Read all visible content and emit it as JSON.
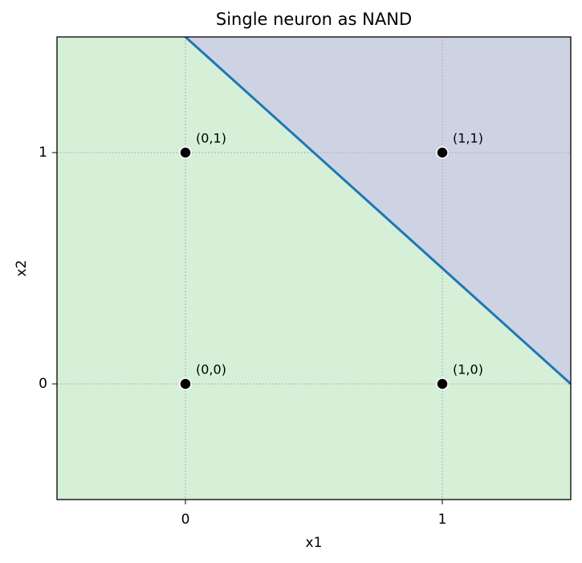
{
  "chart_data": {
    "type": "scatter",
    "title": "Single neuron as NAND",
    "xlabel": "x1",
    "ylabel": "x2",
    "xlim": [
      -0.5,
      1.5
    ],
    "ylim": [
      -0.5,
      1.5
    ],
    "xticks": [
      0,
      1
    ],
    "yticks": [
      0,
      1
    ],
    "grid": true,
    "points": {
      "x": [
        0,
        0,
        1,
        1
      ],
      "y": [
        0,
        1,
        0,
        1
      ],
      "labels": [
        "(0,0)",
        "(0,1)",
        "(1,0)",
        "(1,1)"
      ],
      "color": "#000000"
    },
    "boundary": {
      "x": [
        0,
        1.5
      ],
      "y": [
        1.5,
        0
      ],
      "color": "#1f77b4"
    },
    "region_colors": {
      "below": "#d6efd7",
      "above": "#cdd3e3"
    }
  }
}
